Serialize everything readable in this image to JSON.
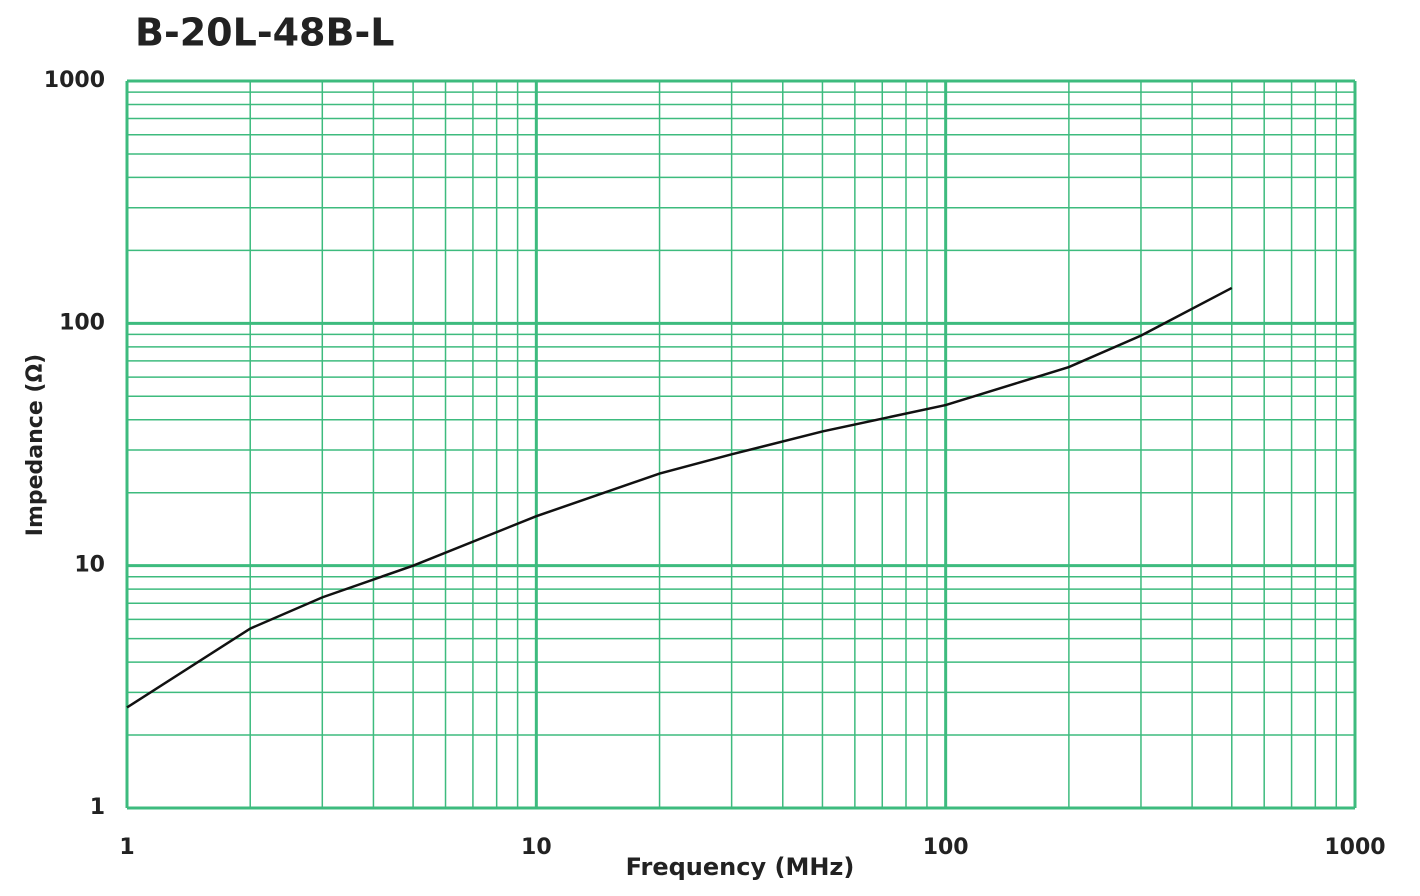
{
  "chart_data": {
    "type": "line",
    "title": "B-20L-48B-L",
    "x_label": "Frequency (MHz)",
    "y_label": "Impedance (Ω)",
    "log_x": true,
    "log_y": true,
    "grid": true,
    "minor_grid": true,
    "grid_color": "#3dbb7e",
    "xlim": [
      1,
      1000
    ],
    "xticks": [
      1,
      10,
      100,
      1000
    ],
    "ylim": [
      1,
      1000
    ],
    "yticks": [
      1,
      10,
      100,
      1000
    ],
    "series": [
      {
        "name": "B-20L-48B-L",
        "color": "#111111",
        "x": [
          1,
          2,
          3,
          5,
          10,
          20,
          30,
          50,
          100,
          200,
          300,
          500
        ],
        "values": [
          2.6,
          5.5,
          7.4,
          10,
          16,
          24,
          28.8,
          35.8,
          46,
          66,
          89,
          140
        ]
      }
    ]
  }
}
